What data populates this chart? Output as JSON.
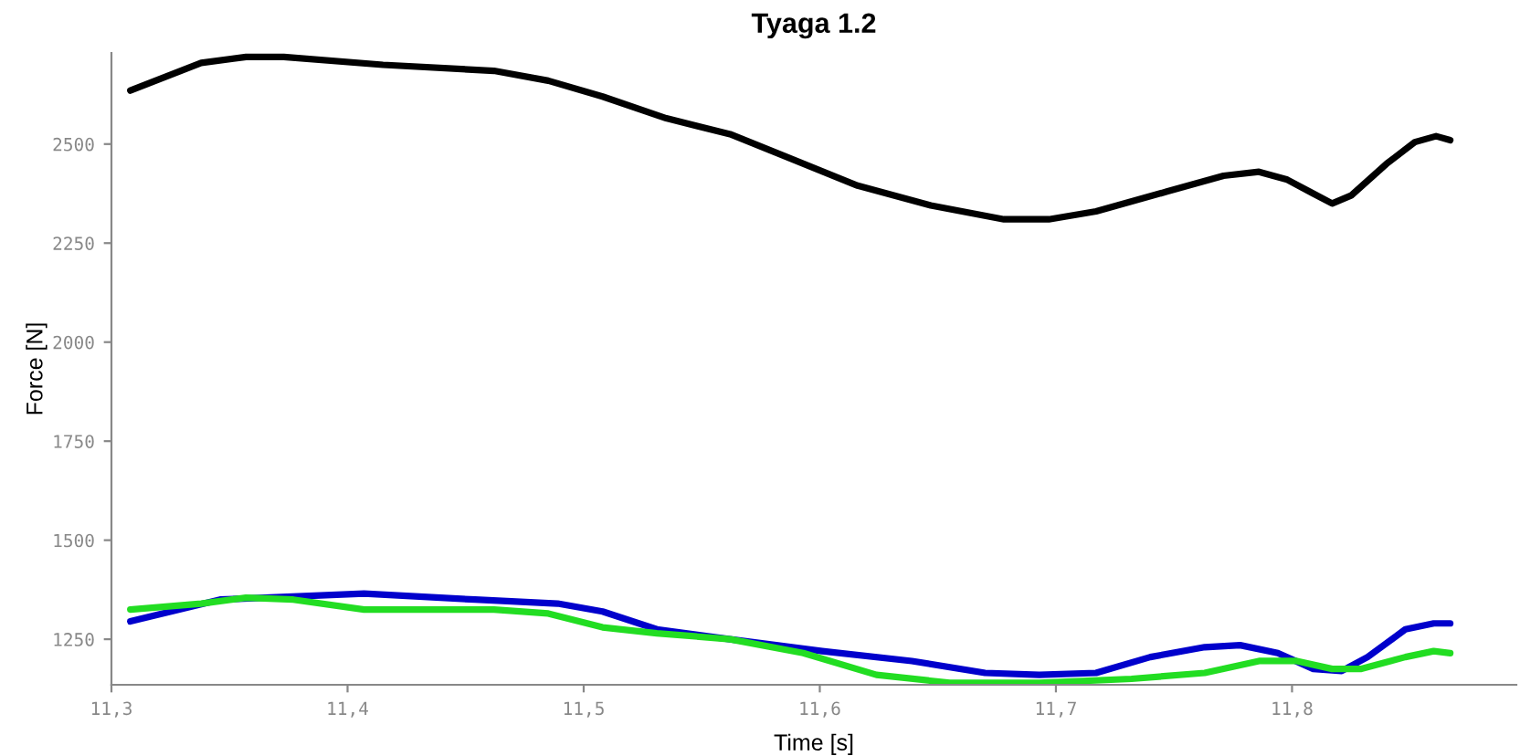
{
  "chart_data": {
    "type": "line",
    "title": "Tyaga 1.2",
    "xlabel": "Time [s]",
    "ylabel": "Force [N]",
    "xlim": [
      11.3,
      11.895
    ],
    "ylim": [
      1135,
      2730
    ],
    "xticks": [
      {
        "value": 11.3,
        "label": "11,3"
      },
      {
        "value": 11.4,
        "label": "11,4"
      },
      {
        "value": 11.5,
        "label": "11,5"
      },
      {
        "value": 11.6,
        "label": "11,6"
      },
      {
        "value": 11.7,
        "label": "11,7"
      },
      {
        "value": 11.8,
        "label": "11,8"
      }
    ],
    "yticks": [
      1250,
      1500,
      1750,
      2000,
      2250,
      2500
    ],
    "grid": false,
    "marker": "none",
    "line_style": "solid",
    "series": [
      {
        "color": "#000000",
        "x": [
          11.308,
          11.338,
          11.357,
          11.373,
          11.415,
          11.462,
          11.485,
          11.508,
          11.535,
          11.562,
          11.585,
          11.616,
          11.647,
          11.678,
          11.697,
          11.717,
          11.747,
          11.771,
          11.786,
          11.798,
          11.809,
          11.817,
          11.825,
          11.84,
          11.852,
          11.861,
          11.867
        ],
        "values": [
          2635,
          2705,
          2720,
          2720,
          2700,
          2685,
          2660,
          2620,
          2565,
          2525,
          2470,
          2395,
          2345,
          2310,
          2310,
          2330,
          2380,
          2420,
          2430,
          2410,
          2375,
          2350,
          2370,
          2450,
          2505,
          2520,
          2510
        ]
      },
      {
        "color": "#0000cc",
        "x": [
          11.308,
          11.346,
          11.407,
          11.454,
          11.489,
          11.508,
          11.531,
          11.562,
          11.601,
          11.639,
          11.67,
          11.693,
          11.717,
          11.74,
          11.763,
          11.778,
          11.794,
          11.809,
          11.821,
          11.832,
          11.848,
          11.86,
          11.867
        ],
        "values": [
          1295,
          1350,
          1365,
          1350,
          1340,
          1320,
          1275,
          1250,
          1220,
          1195,
          1165,
          1160,
          1165,
          1205,
          1230,
          1235,
          1215,
          1175,
          1170,
          1205,
          1275,
          1290,
          1290
        ]
      },
      {
        "color": "#22dd22",
        "x": [
          11.308,
          11.338,
          11.357,
          11.377,
          11.407,
          11.431,
          11.462,
          11.485,
          11.508,
          11.531,
          11.562,
          11.593,
          11.624,
          11.655,
          11.693,
          11.732,
          11.763,
          11.786,
          11.802,
          11.817,
          11.829,
          11.848,
          11.86,
          11.867
        ],
        "values": [
          1325,
          1340,
          1355,
          1350,
          1325,
          1325,
          1325,
          1315,
          1280,
          1265,
          1250,
          1215,
          1160,
          1140,
          1140,
          1150,
          1165,
          1195,
          1195,
          1175,
          1175,
          1205,
          1220,
          1215
        ]
      }
    ]
  }
}
